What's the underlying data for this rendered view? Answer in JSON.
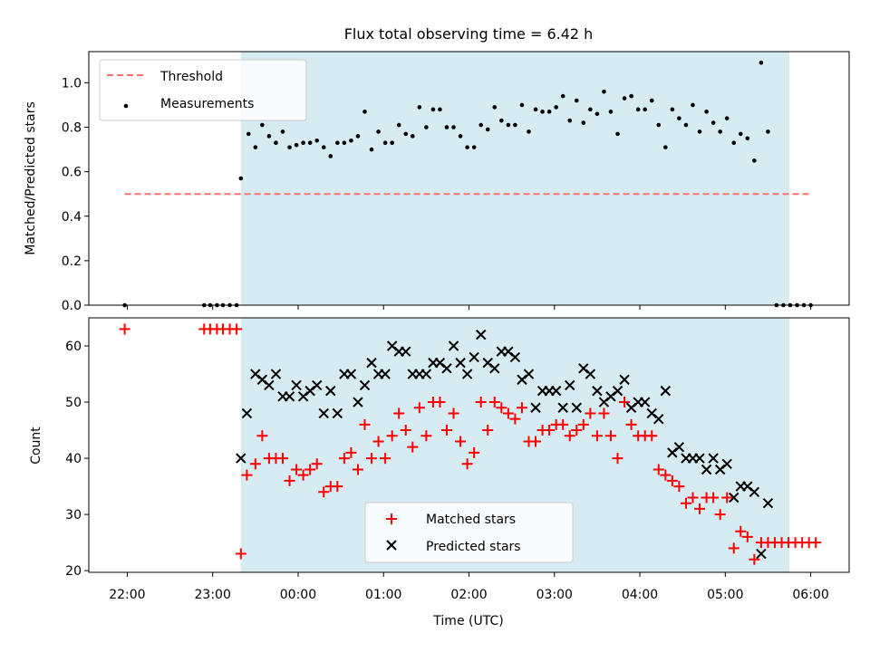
{
  "chart_data": [
    {
      "type": "scatter",
      "title": "Flux total observing time = 6.42 h",
      "xlabel": "",
      "ylabel": "Matched/Predicted stars",
      "ylim": [
        0,
        1.14
      ],
      "yticks": [
        0.0,
        0.2,
        0.4,
        0.6,
        0.8,
        1.0
      ],
      "ytick_labels": [
        "0.0",
        "0.2",
        "0.4",
        "0.6",
        "0.8",
        "1.0"
      ],
      "observing_window_hours": [
        23.33,
        29.75
      ],
      "threshold": {
        "name": "Threshold",
        "value": 0.5,
        "x_range": [
          21.97,
          30.0
        ],
        "color": "#ff7070"
      },
      "measurements_name": "Measurements",
      "legend_position": "upper left",
      "measurements": [
        [
          21.97,
          0.0
        ],
        [
          22.9,
          0.0
        ],
        [
          22.97,
          0.0
        ],
        [
          23.05,
          0.0
        ],
        [
          23.12,
          0.0
        ],
        [
          23.2,
          0.0
        ],
        [
          23.28,
          0.0
        ],
        [
          23.33,
          0.57
        ],
        [
          23.42,
          0.77
        ],
        [
          23.5,
          0.71
        ],
        [
          23.58,
          0.81
        ],
        [
          23.66,
          0.76
        ],
        [
          23.74,
          0.73
        ],
        [
          23.82,
          0.78
        ],
        [
          23.9,
          0.71
        ],
        [
          23.98,
          0.72
        ],
        [
          24.06,
          0.73
        ],
        [
          24.14,
          0.73
        ],
        [
          24.22,
          0.74
        ],
        [
          24.3,
          0.71
        ],
        [
          24.38,
          0.67
        ],
        [
          24.46,
          0.73
        ],
        [
          24.54,
          0.73
        ],
        [
          24.62,
          0.74
        ],
        [
          24.7,
          0.76
        ],
        [
          24.78,
          0.87
        ],
        [
          24.86,
          0.7
        ],
        [
          24.94,
          0.78
        ],
        [
          25.02,
          0.73
        ],
        [
          25.1,
          0.73
        ],
        [
          25.18,
          0.81
        ],
        [
          25.26,
          0.77
        ],
        [
          25.34,
          0.76
        ],
        [
          25.42,
          0.89
        ],
        [
          25.5,
          0.8
        ],
        [
          25.58,
          0.88
        ],
        [
          25.66,
          0.88
        ],
        [
          25.74,
          0.8
        ],
        [
          25.82,
          0.8
        ],
        [
          25.9,
          0.76
        ],
        [
          25.98,
          0.71
        ],
        [
          26.06,
          0.71
        ],
        [
          26.14,
          0.81
        ],
        [
          26.22,
          0.79
        ],
        [
          26.3,
          0.89
        ],
        [
          26.38,
          0.83
        ],
        [
          26.46,
          0.81
        ],
        [
          26.54,
          0.81
        ],
        [
          26.62,
          0.9
        ],
        [
          26.7,
          0.78
        ],
        [
          26.78,
          0.88
        ],
        [
          26.86,
          0.87
        ],
        [
          26.94,
          0.87
        ],
        [
          27.02,
          0.89
        ],
        [
          27.1,
          0.94
        ],
        [
          27.18,
          0.83
        ],
        [
          27.26,
          0.92
        ],
        [
          27.34,
          0.82
        ],
        [
          27.42,
          0.88
        ],
        [
          27.5,
          0.86
        ],
        [
          27.58,
          0.96
        ],
        [
          27.66,
          0.87
        ],
        [
          27.74,
          0.77
        ],
        [
          27.82,
          0.93
        ],
        [
          27.9,
          0.94
        ],
        [
          27.98,
          0.88
        ],
        [
          28.06,
          0.88
        ],
        [
          28.14,
          0.92
        ],
        [
          28.22,
          0.81
        ],
        [
          28.3,
          0.71
        ],
        [
          28.38,
          0.88
        ],
        [
          28.46,
          0.84
        ],
        [
          28.54,
          0.81
        ],
        [
          28.62,
          0.9
        ],
        [
          28.7,
          0.78
        ],
        [
          28.78,
          0.87
        ],
        [
          28.86,
          0.82
        ],
        [
          28.94,
          0.78
        ],
        [
          29.02,
          0.84
        ],
        [
          29.1,
          0.73
        ],
        [
          29.18,
          0.77
        ],
        [
          29.26,
          0.75
        ],
        [
          29.34,
          0.65
        ],
        [
          29.42,
          1.09
        ],
        [
          29.5,
          0.78
        ],
        [
          29.6,
          0.0
        ],
        [
          29.68,
          0.0
        ],
        [
          29.76,
          0.0
        ],
        [
          29.84,
          0.0
        ],
        [
          29.92,
          0.0
        ],
        [
          30.0,
          0.0
        ]
      ]
    },
    {
      "type": "scatter",
      "xlabel": "Time (UTC)",
      "ylabel": "Count",
      "ylim": [
        19.7,
        65
      ],
      "xlim": [
        21.55,
        30.45
      ],
      "yticks": [
        20,
        30,
        40,
        50,
        60
      ],
      "ytick_labels": [
        "20",
        "30",
        "40",
        "50",
        "60"
      ],
      "xticks": [
        22,
        23,
        24,
        25,
        26,
        27,
        28,
        29,
        30
      ],
      "xtick_labels": [
        "22:00",
        "23:00",
        "00:00",
        "01:00",
        "02:00",
        "03:00",
        "04:00",
        "05:00",
        "06:00"
      ],
      "legend_position": "lower center",
      "series": [
        {
          "name": "Matched stars",
          "marker": "plus",
          "color": "#ff0000",
          "points": [
            [
              21.97,
              63
            ],
            [
              22.9,
              63
            ],
            [
              22.97,
              63
            ],
            [
              23.05,
              63
            ],
            [
              23.12,
              63
            ],
            [
              23.2,
              63
            ],
            [
              23.28,
              63
            ],
            [
              23.33,
              23
            ],
            [
              23.4,
              37
            ],
            [
              23.5,
              39
            ],
            [
              23.58,
              44
            ],
            [
              23.66,
              40
            ],
            [
              23.74,
              40
            ],
            [
              23.82,
              40
            ],
            [
              23.9,
              36
            ],
            [
              23.98,
              38
            ],
            [
              24.06,
              37
            ],
            [
              24.14,
              38
            ],
            [
              24.22,
              39
            ],
            [
              24.3,
              34
            ],
            [
              24.38,
              35
            ],
            [
              24.46,
              35
            ],
            [
              24.54,
              40
            ],
            [
              24.62,
              41
            ],
            [
              24.7,
              38
            ],
            [
              24.78,
              46
            ],
            [
              24.86,
              40
            ],
            [
              24.94,
              43
            ],
            [
              25.02,
              40
            ],
            [
              25.1,
              44
            ],
            [
              25.18,
              48
            ],
            [
              25.26,
              45
            ],
            [
              25.34,
              42
            ],
            [
              25.42,
              49
            ],
            [
              25.5,
              44
            ],
            [
              25.58,
              50
            ],
            [
              25.66,
              50
            ],
            [
              25.74,
              45
            ],
            [
              25.82,
              48
            ],
            [
              25.9,
              43
            ],
            [
              25.98,
              39
            ],
            [
              26.06,
              41
            ],
            [
              26.14,
              50
            ],
            [
              26.22,
              45
            ],
            [
              26.3,
              50
            ],
            [
              26.38,
              49
            ],
            [
              26.46,
              48
            ],
            [
              26.54,
              47
            ],
            [
              26.62,
              49
            ],
            [
              26.7,
              43
            ],
            [
              26.78,
              43
            ],
            [
              26.86,
              45
            ],
            [
              26.94,
              45
            ],
            [
              27.02,
              46
            ],
            [
              27.1,
              46
            ],
            [
              27.18,
              44
            ],
            [
              27.26,
              45
            ],
            [
              27.34,
              46
            ],
            [
              27.42,
              48
            ],
            [
              27.5,
              44
            ],
            [
              27.58,
              48
            ],
            [
              27.66,
              44
            ],
            [
              27.74,
              40
            ],
            [
              27.82,
              50
            ],
            [
              27.9,
              46
            ],
            [
              27.98,
              44
            ],
            [
              28.06,
              44
            ],
            [
              28.14,
              44
            ],
            [
              28.22,
              38
            ],
            [
              28.3,
              37
            ],
            [
              28.38,
              36
            ],
            [
              28.46,
              35
            ],
            [
              28.54,
              32
            ],
            [
              28.62,
              33
            ],
            [
              28.7,
              31
            ],
            [
              28.78,
              33
            ],
            [
              28.86,
              33
            ],
            [
              28.94,
              30
            ],
            [
              29.02,
              33
            ],
            [
              29.1,
              24
            ],
            [
              29.18,
              27
            ],
            [
              29.26,
              26
            ],
            [
              29.34,
              22
            ],
            [
              29.42,
              25
            ],
            [
              29.5,
              25
            ],
            [
              29.58,
              25
            ],
            [
              29.66,
              25
            ],
            [
              29.74,
              25
            ],
            [
              29.82,
              25
            ],
            [
              29.9,
              25
            ],
            [
              29.98,
              25
            ],
            [
              30.06,
              25
            ]
          ]
        },
        {
          "name": "Predicted stars",
          "marker": "x",
          "color": "#000000",
          "points": [
            [
              23.33,
              40
            ],
            [
              23.4,
              48
            ],
            [
              23.5,
              55
            ],
            [
              23.58,
              54
            ],
            [
              23.66,
              53
            ],
            [
              23.74,
              55
            ],
            [
              23.82,
              51
            ],
            [
              23.9,
              51
            ],
            [
              23.98,
              53
            ],
            [
              24.06,
              51
            ],
            [
              24.14,
              52
            ],
            [
              24.22,
              53
            ],
            [
              24.3,
              48
            ],
            [
              24.38,
              52
            ],
            [
              24.46,
              48
            ],
            [
              24.54,
              55
            ],
            [
              24.62,
              55
            ],
            [
              24.7,
              50
            ],
            [
              24.78,
              53
            ],
            [
              24.86,
              57
            ],
            [
              24.94,
              55
            ],
            [
              25.02,
              55
            ],
            [
              25.1,
              60
            ],
            [
              25.18,
              59
            ],
            [
              25.26,
              59
            ],
            [
              25.34,
              55
            ],
            [
              25.42,
              55
            ],
            [
              25.5,
              55
            ],
            [
              25.58,
              57
            ],
            [
              25.66,
              57
            ],
            [
              25.74,
              56
            ],
            [
              25.82,
              60
            ],
            [
              25.9,
              57
            ],
            [
              25.98,
              55
            ],
            [
              26.06,
              58
            ],
            [
              26.14,
              62
            ],
            [
              26.22,
              57
            ],
            [
              26.3,
              56
            ],
            [
              26.38,
              59
            ],
            [
              26.46,
              59
            ],
            [
              26.54,
              58
            ],
            [
              26.62,
              54
            ],
            [
              26.7,
              55
            ],
            [
              26.78,
              49
            ],
            [
              26.86,
              52
            ],
            [
              26.94,
              52
            ],
            [
              27.02,
              52
            ],
            [
              27.1,
              49
            ],
            [
              27.18,
              53
            ],
            [
              27.26,
              49
            ],
            [
              27.34,
              56
            ],
            [
              27.42,
              55
            ],
            [
              27.5,
              52
            ],
            [
              27.58,
              50
            ],
            [
              27.66,
              51
            ],
            [
              27.74,
              52
            ],
            [
              27.82,
              54
            ],
            [
              27.9,
              49
            ],
            [
              27.98,
              50
            ],
            [
              28.06,
              50
            ],
            [
              28.14,
              48
            ],
            [
              28.22,
              47
            ],
            [
              28.3,
              52
            ],
            [
              28.38,
              41
            ],
            [
              28.46,
              42
            ],
            [
              28.54,
              40
            ],
            [
              28.62,
              40
            ],
            [
              28.7,
              40
            ],
            [
              28.78,
              38
            ],
            [
              28.86,
              40
            ],
            [
              28.94,
              38
            ],
            [
              29.02,
              39
            ],
            [
              29.1,
              33
            ],
            [
              29.18,
              35
            ],
            [
              29.26,
              35
            ],
            [
              29.34,
              34
            ],
            [
              29.42,
              23
            ],
            [
              29.5,
              32
            ]
          ]
        }
      ]
    }
  ]
}
